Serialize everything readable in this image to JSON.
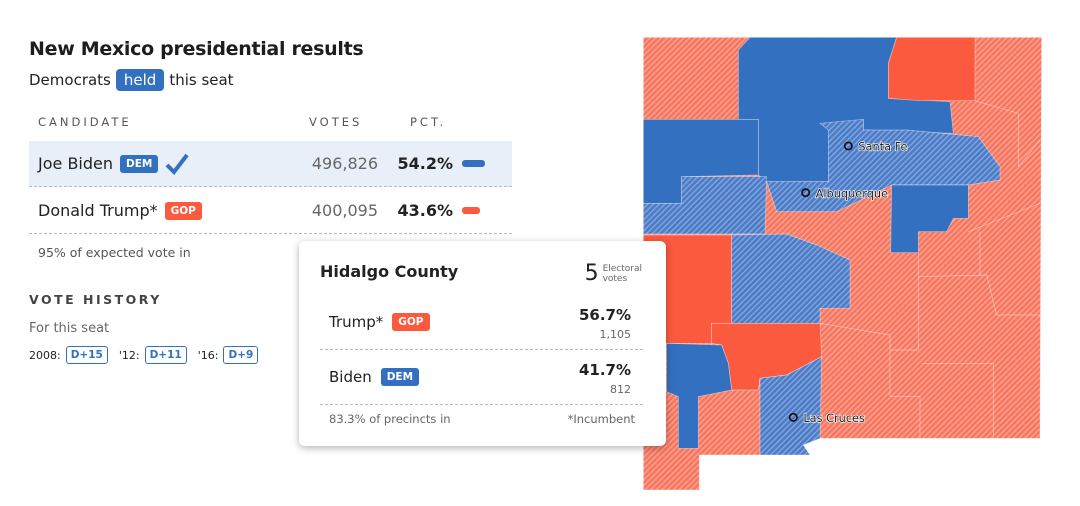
{
  "title": "New Mexico presidential results",
  "subtitle": {
    "before": "Democrats",
    "badge": "held",
    "after": "this seat"
  },
  "headers": {
    "candidate": "CANDIDATE",
    "votes": "VOTES",
    "pct": "PCT."
  },
  "candidates": [
    {
      "name": "Joe Biden",
      "party": "DEM",
      "votes": "496,826",
      "pct": "54.2%",
      "pct_value": 54.2,
      "winner": true
    },
    {
      "name": "Donald Trump*",
      "party": "GOP",
      "votes": "400,095",
      "pct": "43.6%",
      "pct_value": 43.6,
      "winner": false
    }
  ],
  "expected": "95% of expected vote in",
  "vote_history": {
    "title": "VOTE HISTORY",
    "subtitle": "For this seat",
    "items": [
      {
        "year": "2008:",
        "margin": "D+15"
      },
      {
        "year": "'12:",
        "margin": "D+11"
      },
      {
        "year": "'16:",
        "margin": "D+9"
      }
    ]
  },
  "map": {
    "cities": [
      "Santa Fe",
      "Albuquerque",
      "Las Cruces"
    ]
  },
  "tooltip": {
    "county": "Hidalgo County",
    "electoral_votes": "5",
    "electoral_label1": "Electoral",
    "electoral_label2": "votes",
    "rows": [
      {
        "name": "Trump*",
        "party": "GOP",
        "pct": "56.7%",
        "votes": "1,105"
      },
      {
        "name": "Biden",
        "party": "DEM",
        "pct": "41.7%",
        "votes": "812"
      }
    ],
    "precincts": "83.3% of precincts in",
    "note": "*Incumbent"
  },
  "colors": {
    "dem": "#3470c0",
    "gop": "#fc5a3f"
  }
}
